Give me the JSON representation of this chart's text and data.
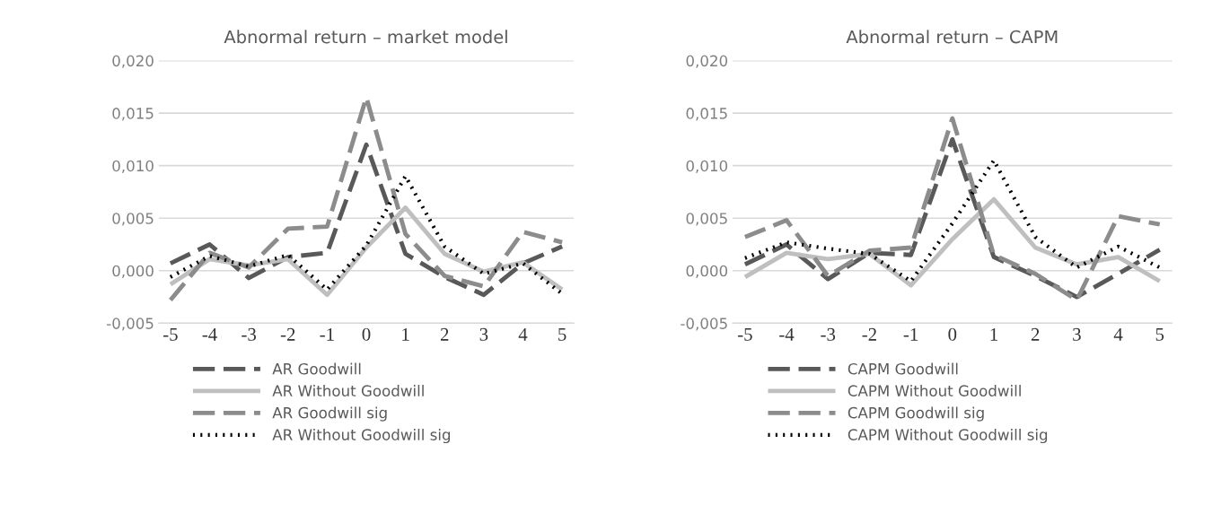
{
  "chart_data": [
    {
      "type": "line",
      "title": "Abnormal return – market model",
      "categories": [
        "-5",
        "-4",
        "-3",
        "-2",
        "-1",
        "0",
        "1",
        "2",
        "3",
        "4",
        "5"
      ],
      "ylim": [
        -0.005,
        0.02
      ],
      "yticks": [
        {
          "value": -0.005,
          "label": "-0,005"
        },
        {
          "value": 0,
          "label": "0,000"
        },
        {
          "value": 0.005,
          "label": "0,005"
        },
        {
          "value": 0.01,
          "label": "0,010"
        },
        {
          "value": 0.015,
          "label": "0,015"
        },
        {
          "value": 0.02,
          "label": "0,020"
        }
      ],
      "grid": "y",
      "legend": "bottom left",
      "series": [
        {
          "name": "AR Goodwill",
          "color": "#595959",
          "line_style": "dashed",
          "values": [
            0.0007,
            0.0025,
            -0.0007,
            0.0013,
            0.0017,
            0.012,
            0.0016,
            -0.0006,
            -0.0023,
            0.0007,
            0.0023
          ]
        },
        {
          "name": "AR Without Goodwill",
          "color": "#bfbfbf",
          "line_style": "solid",
          "values": [
            -0.0013,
            0.0011,
            0.0005,
            0.0011,
            -0.0023,
            0.0022,
            0.006,
            0.0016,
            -0.0001,
            0.0008,
            -0.0018
          ]
        },
        {
          "name": "AR Goodwill sig",
          "color": "#8c8c8c",
          "line_style": "dashed",
          "values": [
            -0.0028,
            0.0017,
            0.0003,
            0.004,
            0.0042,
            0.0165,
            0.0035,
            -0.0005,
            -0.0015,
            0.0037,
            0.0027
          ]
        },
        {
          "name": "AR Without Goodwill sig",
          "color": "#000000",
          "line_style": "dotted",
          "values": [
            -0.0006,
            0.0014,
            0.0004,
            0.0015,
            -0.0018,
            0.0024,
            0.009,
            0.0023,
            -0.0003,
            0.0007,
            -0.0022
          ]
        }
      ]
    },
    {
      "type": "line",
      "title": "Abnormal return – CAPM",
      "categories": [
        "-5",
        "-4",
        "-3",
        "-2",
        "-1",
        "0",
        "1",
        "2",
        "3",
        "4",
        "5"
      ],
      "ylim": [
        -0.005,
        0.02
      ],
      "yticks": [
        {
          "value": -0.005,
          "label": "-0,005"
        },
        {
          "value": 0,
          "label": "0,000"
        },
        {
          "value": 0.005,
          "label": "0,005"
        },
        {
          "value": 0.01,
          "label": "0,010"
        },
        {
          "value": 0.015,
          "label": "0,015"
        },
        {
          "value": 0.02,
          "label": "0,020"
        }
      ],
      "grid": "y",
      "legend": "bottom left",
      "series": [
        {
          "name": "CAPM Goodwill",
          "color": "#595959",
          "line_style": "dashed",
          "values": [
            0.0006,
            0.0025,
            -0.0008,
            0.0017,
            0.0015,
            0.0125,
            0.0013,
            -0.0005,
            -0.0025,
            -0.0003,
            0.002
          ]
        },
        {
          "name": "CAPM Without Goodwill",
          "color": "#bfbfbf",
          "line_style": "solid",
          "values": [
            -0.0006,
            0.0017,
            0.0011,
            0.0016,
            -0.0014,
            0.003,
            0.0068,
            0.0022,
            0.0006,
            0.0013,
            -0.001
          ]
        },
        {
          "name": "CAPM Goodwill sig",
          "color": "#8c8c8c",
          "line_style": "dashed",
          "values": [
            0.0032,
            0.0048,
            -0.0005,
            0.0019,
            0.0022,
            0.0145,
            0.0015,
            -0.0003,
            -0.0028,
            0.0052,
            0.0044
          ]
        },
        {
          "name": "CAPM Without Goodwill sig",
          "color": "#000000",
          "line_style": "dotted",
          "values": [
            0.0012,
            0.0027,
            0.0021,
            0.0016,
            -0.001,
            0.0045,
            0.0105,
            0.0032,
            0.0003,
            0.0023,
            0.0003
          ]
        }
      ]
    }
  ]
}
